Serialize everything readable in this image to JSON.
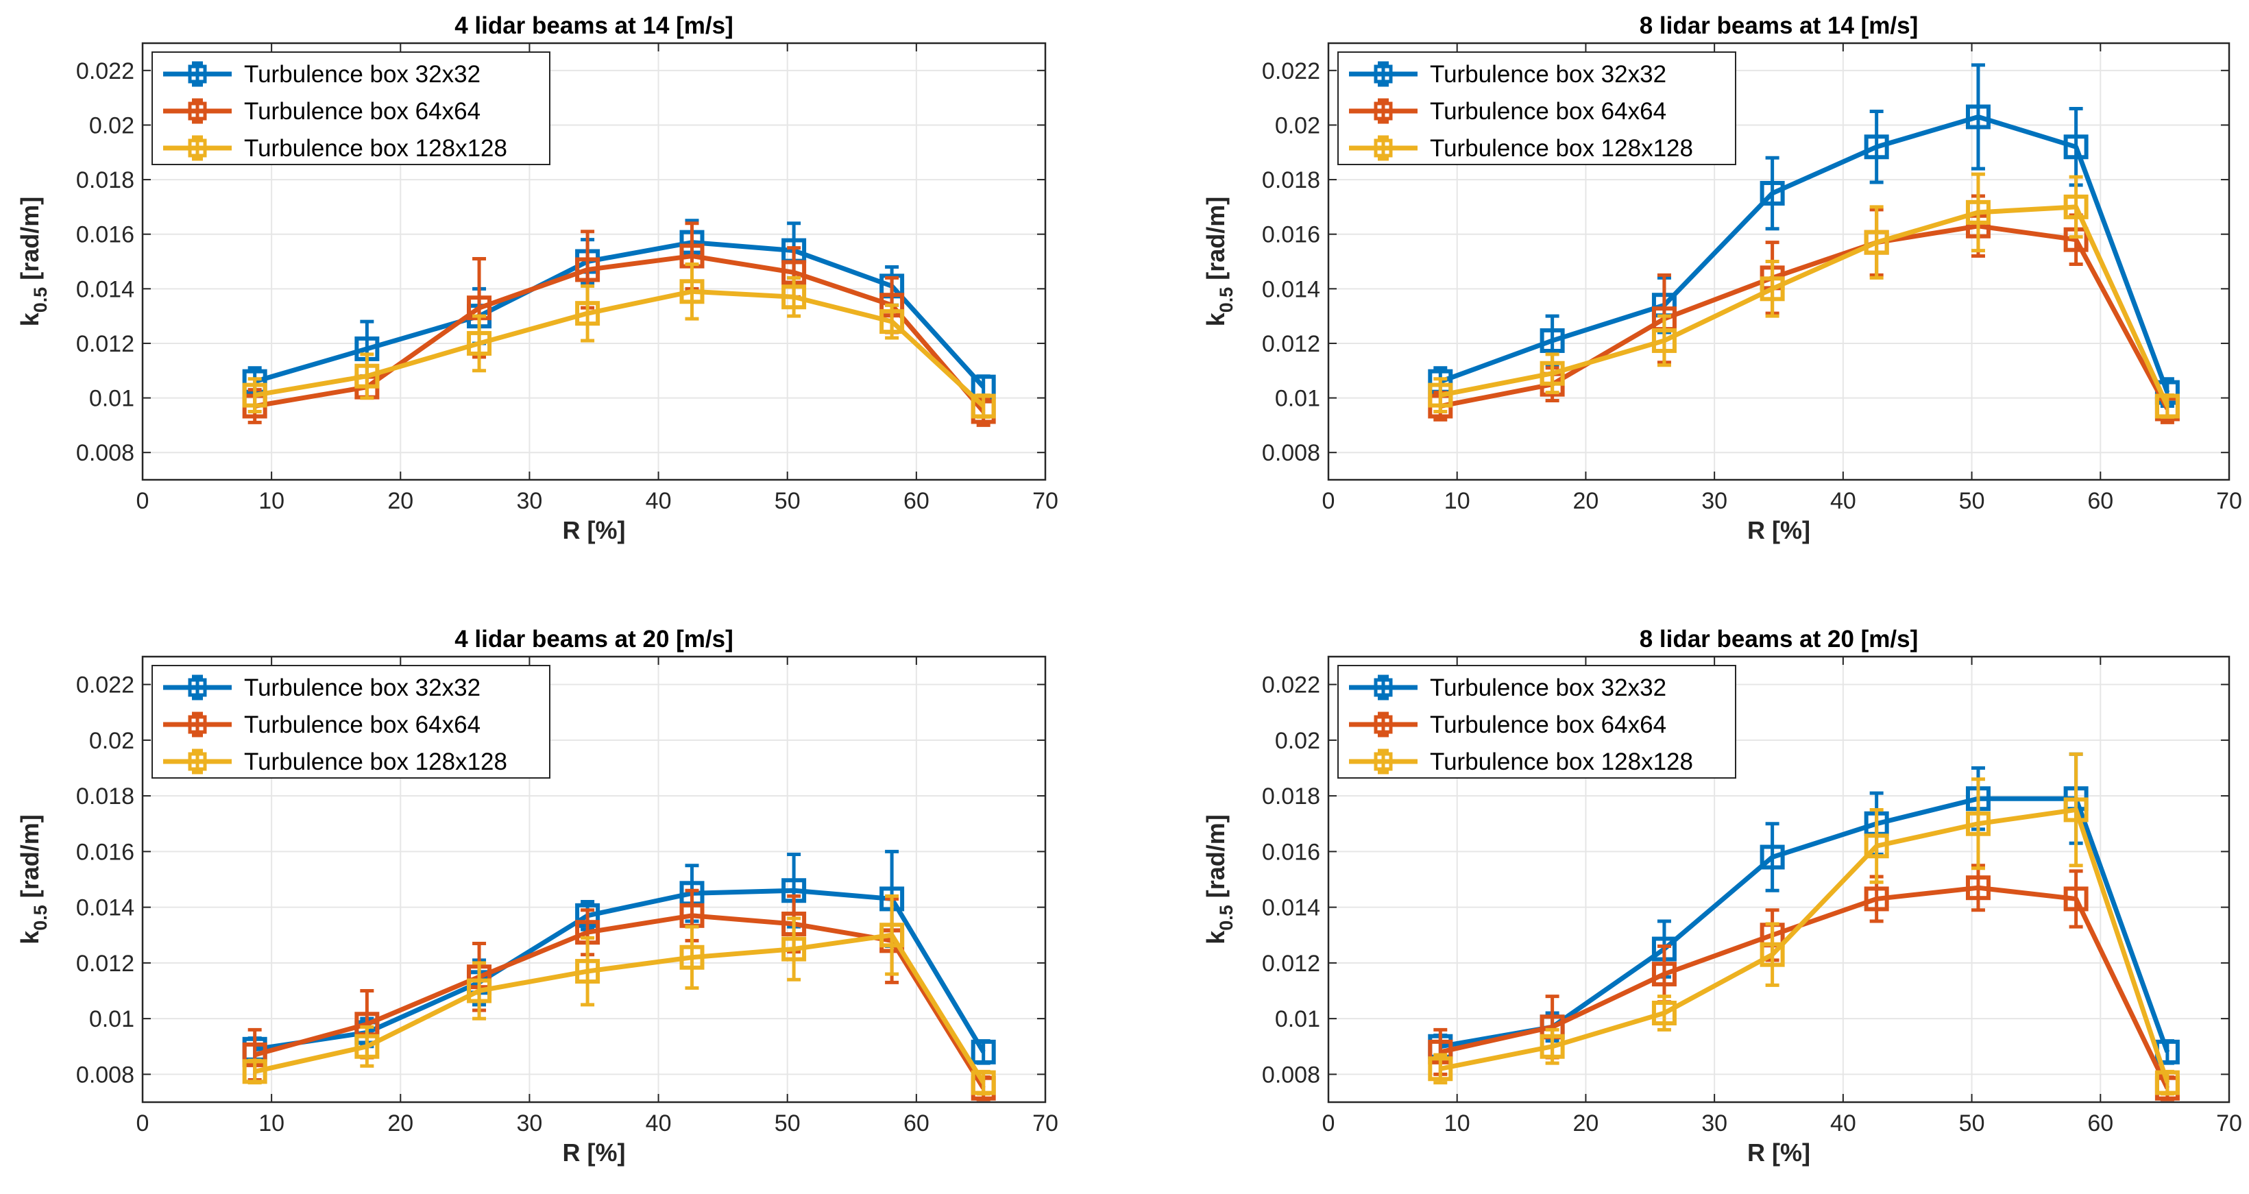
{
  "figure": {
    "tick_label_color": "#262626",
    "grid_color": "#e6e6e6",
    "axes_color": "#262626"
  },
  "chart_data": [
    {
      "type": "line",
      "title": "4 lidar beams at 14 [m/s]",
      "xlabel": "R [%]",
      "ylabel_main": "k",
      "ylabel_sub": "0.5",
      "ylabel_unit": " [rad/m]",
      "xlim": [
        0,
        70
      ],
      "ylim": [
        0.007,
        0.023
      ],
      "xticks": [
        0,
        10,
        20,
        30,
        40,
        50,
        60,
        70
      ],
      "xtick_labels": [
        "0",
        "10",
        "20",
        "30",
        "40",
        "50",
        "60",
        "70"
      ],
      "yticks": [
        0.008,
        0.01,
        0.012,
        0.014,
        0.016,
        0.018,
        0.02,
        0.022
      ],
      "ytick_labels": [
        "0.008",
        "0.01",
        "0.012",
        "0.014",
        "0.016",
        "0.018",
        "0.02",
        "0.022"
      ],
      "x": [
        8.7,
        17.4,
        26.1,
        34.5,
        42.6,
        50.5,
        58.1,
        65.2
      ],
      "legend_position": "top-left",
      "series": [
        {
          "name": "Turbulence box 32x32",
          "color": "#0072BD",
          "values": [
            0.0106,
            0.0118,
            0.013,
            0.015,
            0.0157,
            0.0154,
            0.0141,
            0.0104
          ],
          "err": [
            0.0005,
            0.001,
            0.001,
            0.0008,
            0.0008,
            0.001,
            0.0007,
            0.0004
          ]
        },
        {
          "name": "Turbulence box 64x64",
          "color": "#D95319",
          "values": [
            0.0097,
            0.0104,
            0.0133,
            0.0147,
            0.0152,
            0.0146,
            0.0134,
            0.0095
          ],
          "err": [
            0.0006,
            0.0004,
            0.0018,
            0.0014,
            0.0012,
            0.0009,
            0.001,
            0.0005
          ]
        },
        {
          "name": "Turbulence box 128x128",
          "color": "#EDB120",
          "values": [
            0.0101,
            0.0108,
            0.012,
            0.0131,
            0.0139,
            0.0137,
            0.0128,
            0.0097
          ],
          "err": [
            0.0006,
            0.0008,
            0.001,
            0.001,
            0.001,
            0.0007,
            0.0006,
            0.0004
          ]
        }
      ]
    },
    {
      "type": "line",
      "title": "8 lidar beams at 14 [m/s]",
      "xlabel": "R [%]",
      "ylabel_main": "k",
      "ylabel_sub": "0.5",
      "ylabel_unit": " [rad/m]",
      "xlim": [
        0,
        70
      ],
      "ylim": [
        0.007,
        0.023
      ],
      "xticks": [
        0,
        10,
        20,
        30,
        40,
        50,
        60,
        70
      ],
      "xtick_labels": [
        "0",
        "10",
        "20",
        "30",
        "40",
        "50",
        "60",
        "70"
      ],
      "yticks": [
        0.008,
        0.01,
        0.012,
        0.014,
        0.016,
        0.018,
        0.02,
        0.022
      ],
      "ytick_labels": [
        "0.008",
        "0.01",
        "0.012",
        "0.014",
        "0.016",
        "0.018",
        "0.02",
        "0.022"
      ],
      "x": [
        8.7,
        17.4,
        26.1,
        34.5,
        42.6,
        50.5,
        58.1,
        65.2
      ],
      "legend_position": "top-left",
      "series": [
        {
          "name": "Turbulence box 32x32",
          "color": "#0072BD",
          "values": [
            0.0106,
            0.0121,
            0.0134,
            0.0175,
            0.0192,
            0.0203,
            0.0192,
            0.0102
          ],
          "err": [
            0.0005,
            0.0009,
            0.001,
            0.0013,
            0.0013,
            0.0019,
            0.0014,
            0.0005
          ]
        },
        {
          "name": "Turbulence box 64x64",
          "color": "#D95319",
          "values": [
            0.0097,
            0.0105,
            0.0129,
            0.0144,
            0.0157,
            0.0163,
            0.0158,
            0.0096
          ],
          "err": [
            0.0005,
            0.0006,
            0.0016,
            0.0013,
            0.0012,
            0.0011,
            0.0009,
            0.0005
          ]
        },
        {
          "name": "Turbulence box 128x128",
          "color": "#EDB120",
          "values": [
            0.0101,
            0.0109,
            0.0121,
            0.014,
            0.0157,
            0.0168,
            0.017,
            0.0097
          ],
          "err": [
            0.0006,
            0.0007,
            0.0009,
            0.001,
            0.0013,
            0.0014,
            0.0011,
            0.0004
          ]
        }
      ]
    },
    {
      "type": "line",
      "title": "4 lidar beams at 20 [m/s]",
      "xlabel": "R [%]",
      "ylabel_main": "k",
      "ylabel_sub": "0.5",
      "ylabel_unit": " [rad/m]",
      "xlim": [
        0,
        70
      ],
      "ylim": [
        0.007,
        0.023
      ],
      "xticks": [
        0,
        10,
        20,
        30,
        40,
        50,
        60,
        70
      ],
      "xtick_labels": [
        "0",
        "10",
        "20",
        "30",
        "40",
        "50",
        "60",
        "70"
      ],
      "yticks": [
        0.008,
        0.01,
        0.012,
        0.014,
        0.016,
        0.018,
        0.02,
        0.022
      ],
      "ytick_labels": [
        "0.008",
        "0.01",
        "0.012",
        "0.014",
        "0.016",
        "0.018",
        "0.02",
        "0.022"
      ],
      "x": [
        8.7,
        17.4,
        26.1,
        34.5,
        42.6,
        50.5,
        58.1,
        65.2
      ],
      "legend_position": "top-left",
      "series": [
        {
          "name": "Turbulence box 32x32",
          "color": "#0072BD",
          "values": [
            0.0089,
            0.0095,
            0.0113,
            0.0137,
            0.0145,
            0.0146,
            0.0143,
            0.0088
          ],
          "err": [
            0.0004,
            0.0005,
            0.0008,
            0.0005,
            0.001,
            0.0013,
            0.0017,
            0.0004
          ]
        },
        {
          "name": "Turbulence box 64x64",
          "color": "#D95319",
          "values": [
            0.0087,
            0.0098,
            0.0115,
            0.0131,
            0.0137,
            0.0134,
            0.0128,
            0.0075
          ],
          "err": [
            0.0009,
            0.0012,
            0.0012,
            0.0008,
            0.0009,
            0.001,
            0.0015,
            0.0004
          ]
        },
        {
          "name": "Turbulence box 128x128",
          "color": "#EDB120",
          "values": [
            0.0081,
            0.009,
            0.011,
            0.0117,
            0.0122,
            0.0125,
            0.013,
            0.0077
          ],
          "err": [
            0.0004,
            0.0007,
            0.001,
            0.0012,
            0.0011,
            0.0011,
            0.0014,
            0.0004
          ]
        }
      ]
    },
    {
      "type": "line",
      "title": "8 lidar beams at 20 [m/s]",
      "xlabel": "R [%]",
      "ylabel_main": "k",
      "ylabel_sub": "0.5",
      "ylabel_unit": " [rad/m]",
      "xlim": [
        0,
        70
      ],
      "ylim": [
        0.007,
        0.023
      ],
      "xticks": [
        0,
        10,
        20,
        30,
        40,
        50,
        60,
        70
      ],
      "xtick_labels": [
        "0",
        "10",
        "20",
        "30",
        "40",
        "50",
        "60",
        "70"
      ],
      "yticks": [
        0.008,
        0.01,
        0.012,
        0.014,
        0.016,
        0.018,
        0.02,
        0.022
      ],
      "ytick_labels": [
        "0.008",
        "0.01",
        "0.012",
        "0.014",
        "0.016",
        "0.018",
        "0.02",
        "0.022"
      ],
      "x": [
        8.7,
        17.4,
        26.1,
        34.5,
        42.6,
        50.5,
        58.1,
        65.2
      ],
      "legend_position": "top-left",
      "series": [
        {
          "name": "Turbulence box 32x32",
          "color": "#0072BD",
          "values": [
            0.009,
            0.0097,
            0.0125,
            0.0158,
            0.017,
            0.0179,
            0.0179,
            0.0088
          ],
          "err": [
            0.0004,
            0.0005,
            0.001,
            0.0012,
            0.0011,
            0.0011,
            0.0016,
            0.0004
          ]
        },
        {
          "name": "Turbulence box 64x64",
          "color": "#D95319",
          "values": [
            0.0088,
            0.0097,
            0.0116,
            0.013,
            0.0143,
            0.0147,
            0.0143,
            0.0075
          ],
          "err": [
            0.0008,
            0.0011,
            0.001,
            0.0009,
            0.0008,
            0.0008,
            0.001,
            0.0004
          ]
        },
        {
          "name": "Turbulence box 128x128",
          "color": "#EDB120",
          "values": [
            0.0082,
            0.009,
            0.0102,
            0.0123,
            0.0162,
            0.017,
            0.0175,
            0.0077
          ],
          "err": [
            0.0005,
            0.0006,
            0.0006,
            0.0011,
            0.0013,
            0.0016,
            0.002,
            0.0004
          ]
        }
      ]
    }
  ]
}
